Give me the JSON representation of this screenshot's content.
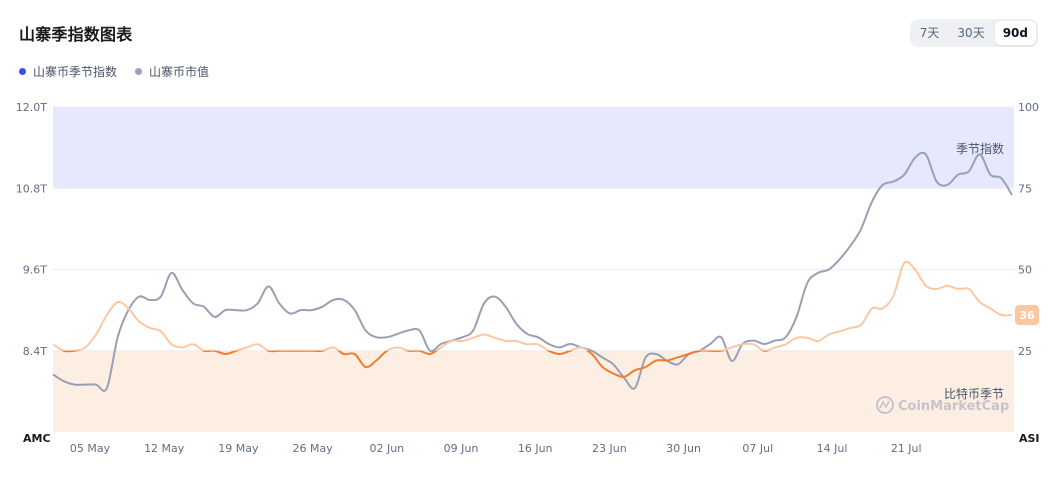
{
  "header": {
    "title": "山寨季指数图表",
    "range_options": [
      "7天",
      "30天",
      "90d"
    ],
    "active_range": "90d"
  },
  "legend": [
    {
      "label": "山寨币季节指数",
      "color": "#3d4fe0"
    },
    {
      "label": "山寨币市值",
      "color": "#9ea3b8"
    }
  ],
  "chart_data": {
    "type": "line",
    "x_ticks": [
      "05 May",
      "12 May",
      "19 May",
      "26 May",
      "02 Jun",
      "09 Jun",
      "16 Jun",
      "23 Jun",
      "30 Jun",
      "07 Jul",
      "14 Jul",
      "21 Jul"
    ],
    "left_axis": {
      "label": "AMC",
      "ticks": [
        "12.0T",
        "10.8T",
        "9.6T",
        "8.4T"
      ],
      "range": [
        7.2,
        12.0
      ],
      "unit": "T"
    },
    "right_axis": {
      "label": "ASI",
      "ticks": [
        "100",
        "75",
        "50",
        "25"
      ],
      "range": [
        0,
        100
      ]
    },
    "zones": [
      {
        "label": "季节指数",
        "from": 75,
        "to": 100,
        "color": "#e6e8fd"
      },
      {
        "label": "比特币季节",
        "from": 0,
        "to": 25,
        "color": "#fdeee4"
      }
    ],
    "current_value_badge": "36",
    "series": [
      {
        "name": "山寨币市值",
        "axis": "left",
        "color": "#9aa0b4",
        "values": [
          8.05,
          7.95,
          7.9,
          7.9,
          7.9,
          7.85,
          8.6,
          9.0,
          9.2,
          9.15,
          9.2,
          9.55,
          9.3,
          9.1,
          9.05,
          8.9,
          9.0,
          9.0,
          9.0,
          9.1,
          9.35,
          9.1,
          8.95,
          9.0,
          9.0,
          9.05,
          9.15,
          9.15,
          9.0,
          8.7,
          8.6,
          8.6,
          8.65,
          8.7,
          8.7,
          8.4,
          8.5,
          8.55,
          8.6,
          8.7,
          9.1,
          9.2,
          9.05,
          8.8,
          8.65,
          8.6,
          8.5,
          8.45,
          8.5,
          8.45,
          8.4,
          8.3,
          8.2,
          8.0,
          7.85,
          8.3,
          8.35,
          8.25,
          8.2,
          8.35,
          8.4,
          8.5,
          8.6,
          8.25,
          8.5,
          8.55,
          8.5,
          8.55,
          8.6,
          8.9,
          9.4,
          9.55,
          9.6,
          9.75,
          9.95,
          10.2,
          10.6,
          10.85,
          10.9,
          11.0,
          11.25,
          11.3,
          10.9,
          10.85,
          11.0,
          11.05,
          11.3,
          11.0,
          10.95,
          10.7
        ]
      },
      {
        "name": "山寨币季节指数",
        "axis": "right",
        "color": "#ef7d2e",
        "values": [
          27,
          25,
          25,
          26,
          30,
          36,
          40,
          38,
          34,
          32,
          31,
          27,
          26,
          27,
          25,
          25,
          24,
          25,
          26,
          27,
          25,
          25,
          25,
          25,
          25,
          25,
          26,
          24,
          24,
          20,
          22,
          25,
          26,
          25,
          25,
          24,
          26,
          28,
          28,
          29,
          30,
          29,
          28,
          28,
          27,
          27,
          25,
          24,
          25,
          26,
          24,
          20,
          18,
          17,
          19,
          20,
          22,
          22,
          23,
          24,
          25,
          25,
          25,
          26,
          27,
          27,
          25,
          26,
          27,
          29,
          29,
          28,
          30,
          31,
          32,
          33,
          38,
          38,
          42,
          52,
          50,
          45,
          44,
          45,
          44,
          44,
          40,
          38,
          36,
          36
        ]
      }
    ],
    "annotations": [
      "季节指数",
      "比特币季节"
    ],
    "watermark": "CoinMarketCap"
  }
}
